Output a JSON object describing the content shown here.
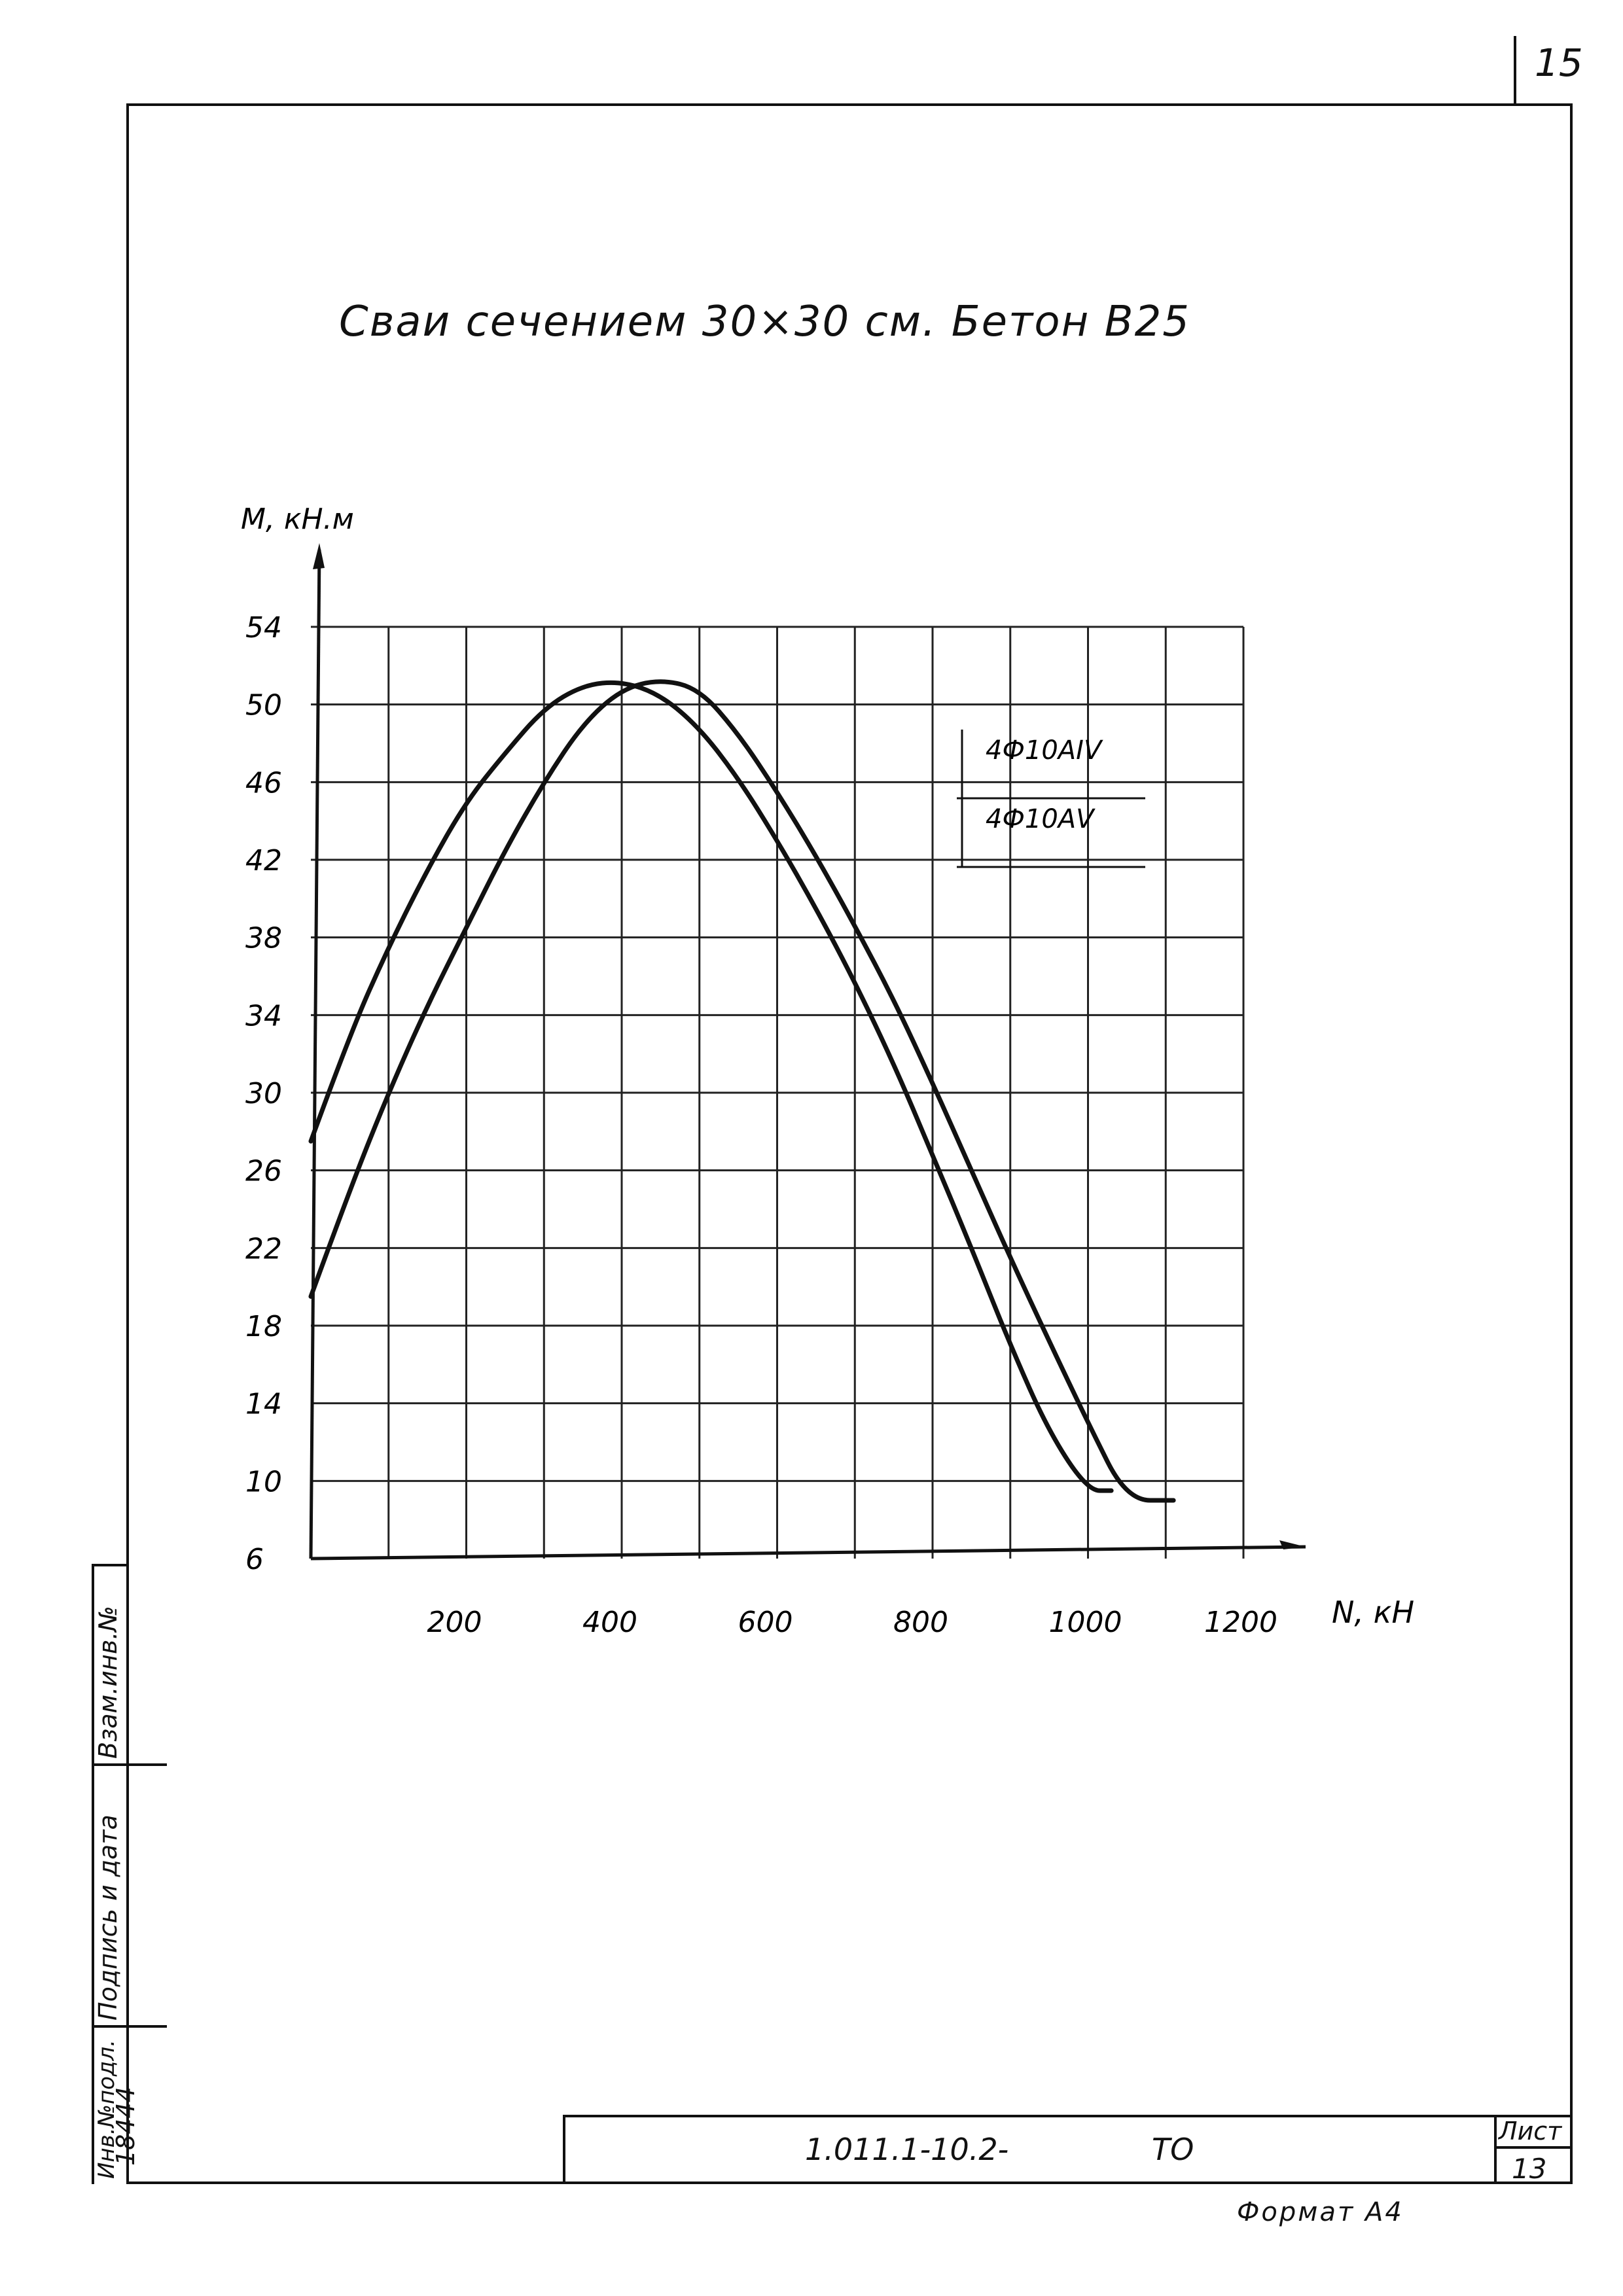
{
  "page": {
    "page_number": "15",
    "title": "Сваи сечением 30×30 см. Бетон В25",
    "format_label": "Формат А4"
  },
  "side_stamp": {
    "inv_original": "Инв.№подл.",
    "signature_date": "Подпись и дата",
    "replacement_inv": "Взам.инв.№",
    "inv_value": "18444"
  },
  "title_block": {
    "doc_code": "1.011.1-10.2-",
    "doc_suffix": "ТО",
    "sheet_label": "Лист",
    "sheet_number": "13"
  },
  "chart_data": {
    "type": "line",
    "ylabel": "M, кН.м",
    "xlabel": "N, кН",
    "xlim": [
      0,
      1200
    ],
    "ylim": [
      6,
      54
    ],
    "x_ticks": [
      "200",
      "400",
      "600",
      "800",
      "1000",
      "1200"
    ],
    "y_ticks": [
      "54",
      "50",
      "46",
      "42",
      "38",
      "34",
      "30",
      "26",
      "22",
      "18",
      "14",
      "10",
      "6"
    ],
    "grid": true,
    "legend_position": "top-right",
    "series": [
      {
        "name": "4Ф10АIV",
        "x": [
          0,
          50,
          100,
          150,
          200,
          250,
          300,
          350,
          400,
          450,
          500,
          550,
          600,
          650,
          700,
          750,
          800,
          850,
          900,
          950,
          1000,
          1030
        ],
        "y": [
          27.5,
          33,
          37.5,
          41.5,
          45,
          47.5,
          49.8,
          51,
          51.2,
          50.5,
          48.8,
          46.2,
          43,
          39.5,
          35.7,
          31.5,
          26.8,
          22,
          17,
          12.5,
          9.5,
          9.5
        ]
      },
      {
        "name": "4Ф10АV",
        "x": [
          0,
          50,
          100,
          150,
          200,
          250,
          300,
          350,
          400,
          450,
          500,
          550,
          600,
          650,
          700,
          750,
          800,
          850,
          900,
          950,
          1000,
          1050,
          1110
        ],
        "y": [
          19.5,
          25,
          30,
          34.5,
          38.5,
          42.5,
          46,
          49,
          50.8,
          51.3,
          50.8,
          48.5,
          45.5,
          42.2,
          38.6,
          34.8,
          30.5,
          26,
          21.5,
          17.2,
          13,
          9,
          9
        ]
      }
    ]
  }
}
